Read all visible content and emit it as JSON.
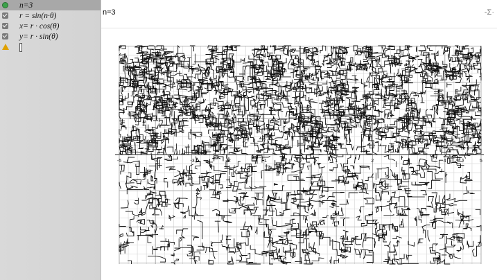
{
  "expressions": [
    {
      "text": "n=3",
      "indicator": "dot"
    },
    {
      "text": "r = sin(n·θ)",
      "indicator": "check"
    },
    {
      "text": "x= r · cos(θ)",
      "indicator": "check"
    },
    {
      "text": "y= r · sin(θ)",
      "indicator": "check"
    },
    {
      "text": "",
      "indicator": "warning"
    }
  ],
  "input_bar": {
    "text": "n=3",
    "symbol": "-Σ·"
  },
  "graph": {
    "x_ticks": [
      "-5",
      "-4",
      "-3",
      "-2",
      "-1",
      "0",
      "1",
      "2",
      "3",
      "4",
      "5"
    ],
    "y_ticks": [],
    "x_range": [
      -5,
      5
    ],
    "axis_color": "#222222",
    "grid_color": "#d6d6d6"
  }
}
